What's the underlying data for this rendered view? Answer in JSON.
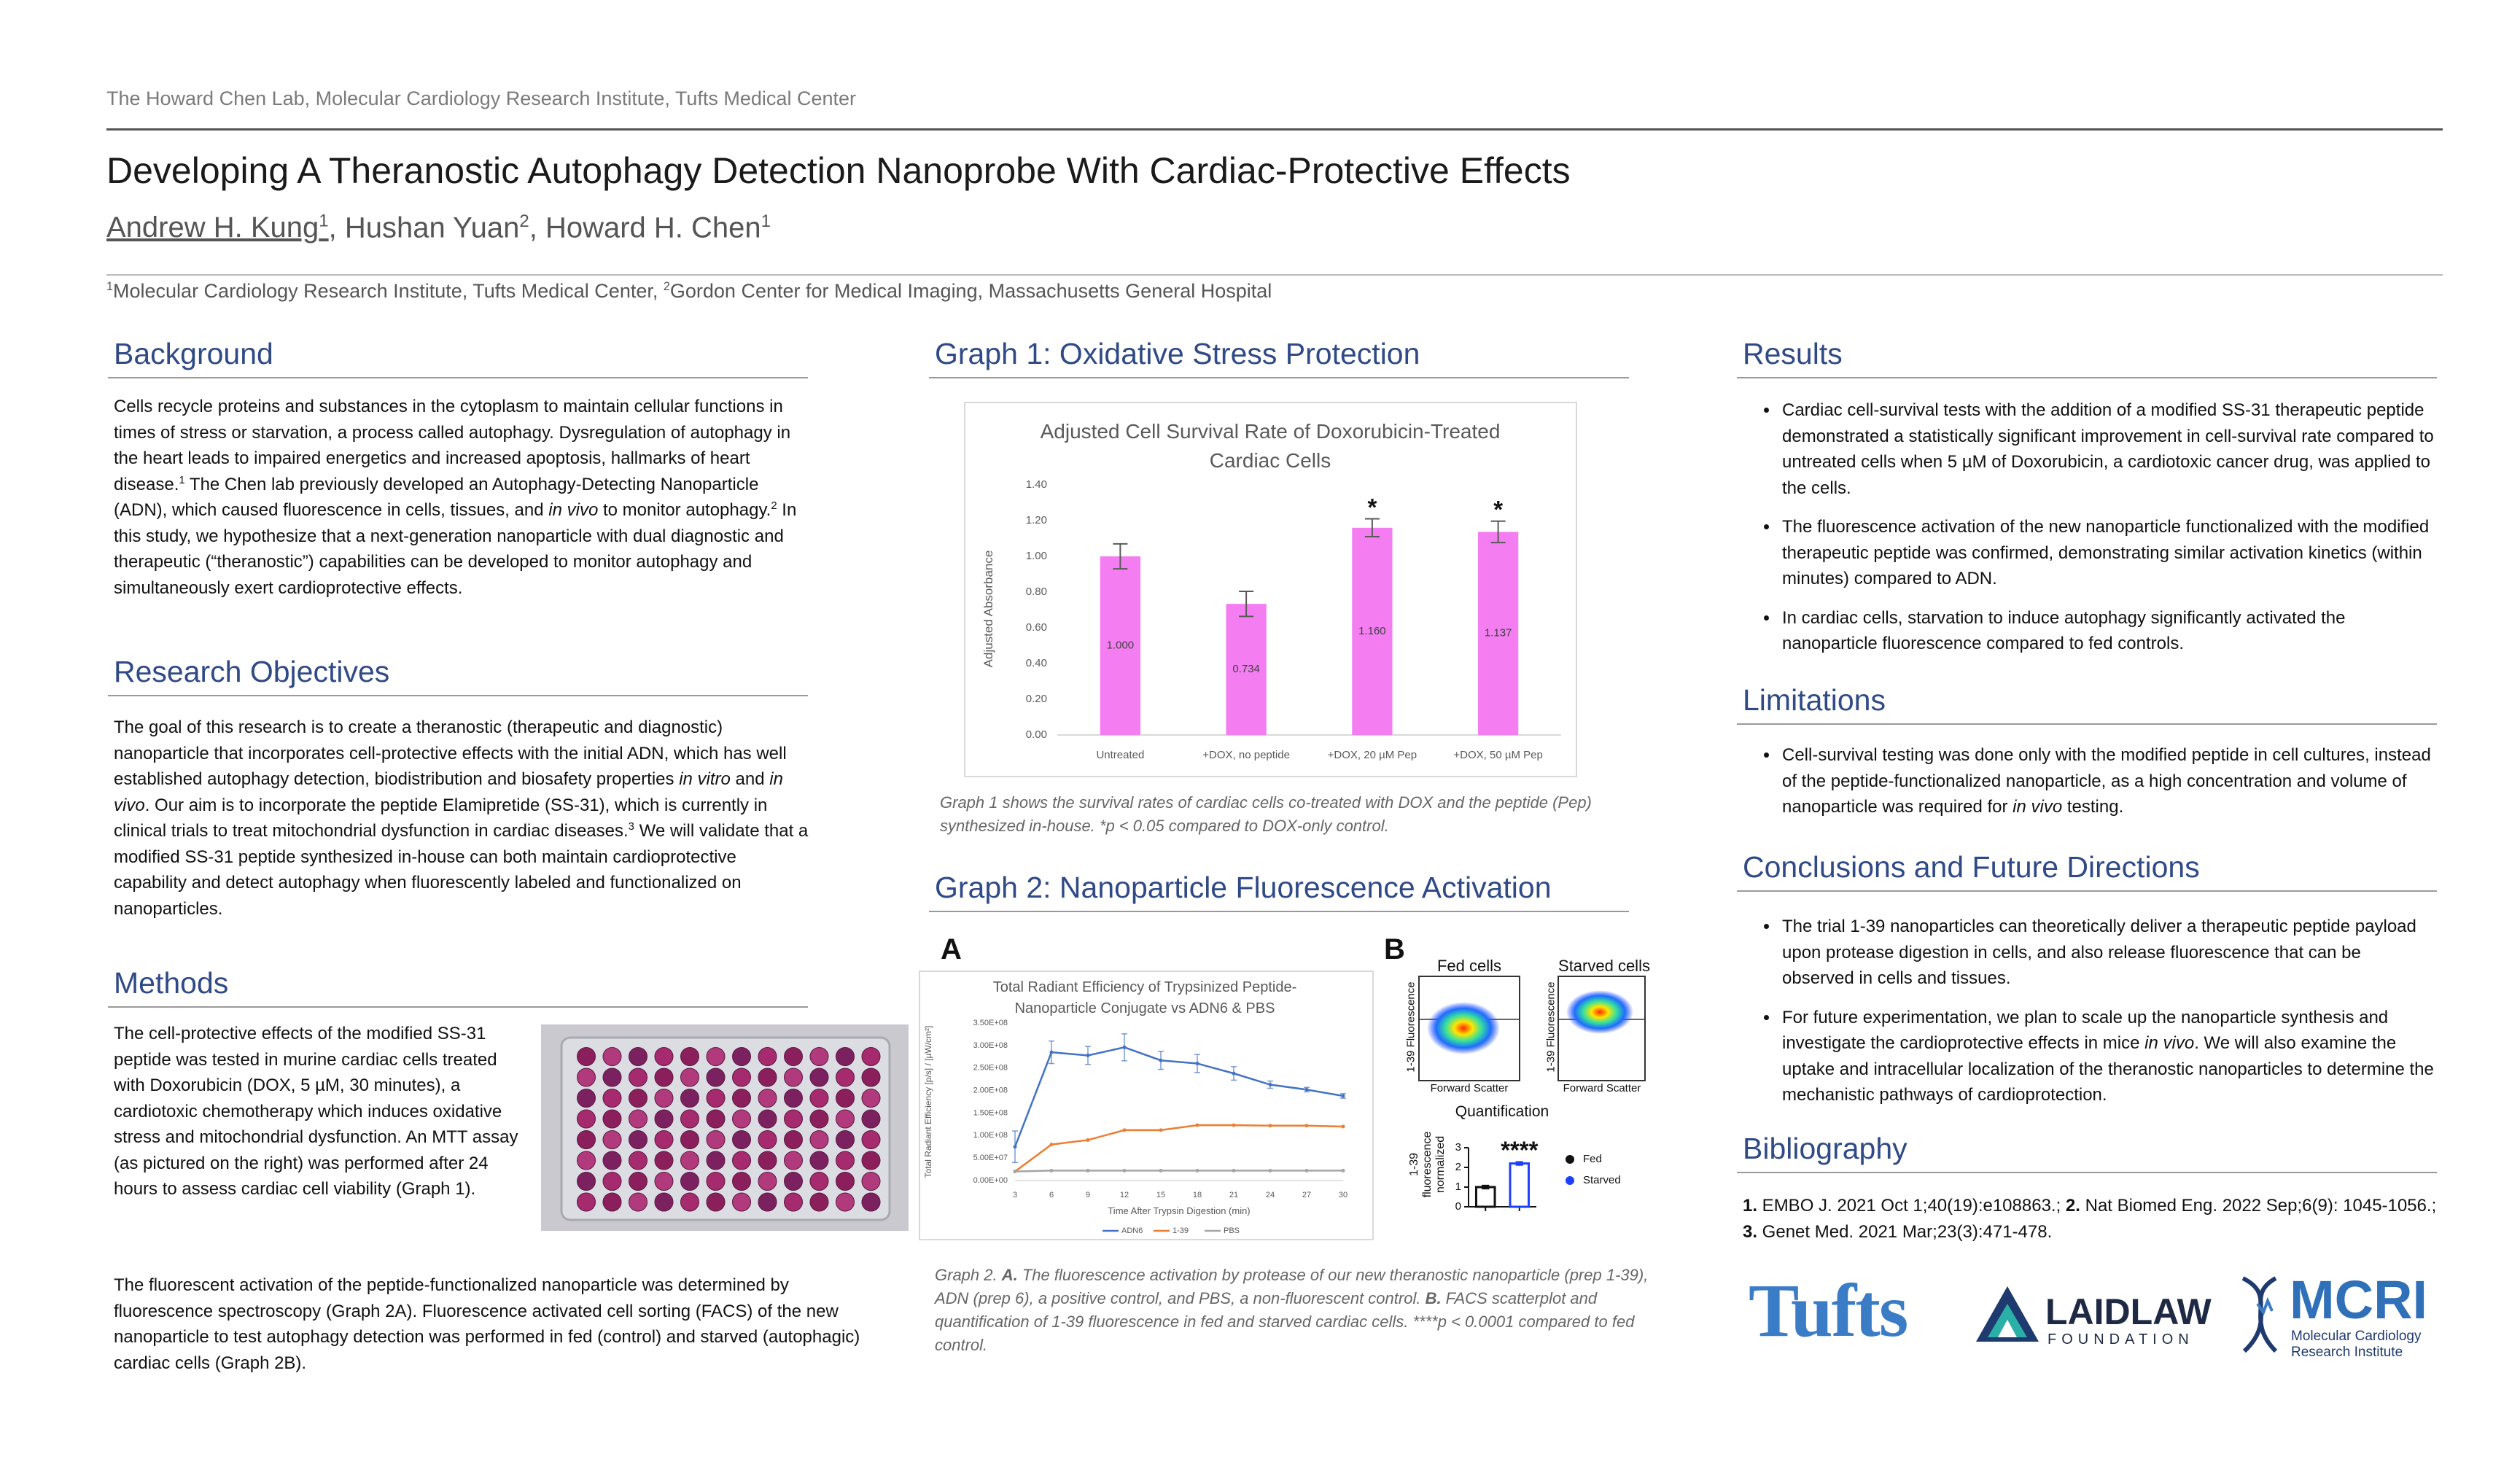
{
  "header": {
    "lab": "The Howard Chen Lab, Molecular Cardiology Research Institute, Tufts Medical Center",
    "title": "Developing A Theranostic Autophagy Detection Nanoprobe With Cardiac-Protective Effects",
    "authors": [
      {
        "name": "Andrew H. Kung",
        "affiliation": "1"
      },
      {
        "name": "Hushan Yuan",
        "affiliation": "2"
      },
      {
        "name": "Howard H. Chen",
        "affiliation": "1"
      }
    ],
    "author_separator": ", ",
    "affiliations": [
      {
        "number": "1",
        "name": "Molecular Cardiology Research Institute, Tufts Medical Center"
      },
      {
        "number": "2",
        "name": "Gordon Center for Medical Imaging, Massachusetts General Hospital"
      }
    ],
    "affiliation_separator": ", "
  },
  "background": {
    "heading": "Background",
    "text": [
      "Cells recycle proteins and substances in the cytoplasm to maintain cellular functions in times of stress or starvation, a process called autophagy. Dysregulation of autophagy in the heart leads to impaired energetics and increased apoptosis, hallmarks of heart disease.",
      "1",
      " The Chen lab previously developed an Autophagy-Detecting Nanoparticle (ADN), which caused fluorescence in cells, tissues, and ",
      "in vivo",
      " to monitor autophagy.",
      "2",
      " In this study, we hypothesize that a next-generation nanoparticle with dual diagnostic and therapeutic (“theranostic”) capabilities can be developed to monitor autophagy and simultaneously exert cardioprotective effects."
    ]
  },
  "objectives": {
    "heading": "Research Objectives",
    "text": [
      "The goal of this research is to create a theranostic (therapeutic and diagnostic) nanoparticle that incorporates cell-protective effects with the initial ADN, which has well established autophagy detection, biodistribution and biosafety properties ",
      "in vitro",
      " and ",
      "in vivo",
      ". Our aim is to incorporate the peptide Elamipretide (SS-31), which is currently in clinical trials to treat mitochondrial dysfunction in cardiac diseases.",
      "3",
      " We will validate that a modified SS-31 peptide synthesized in-house can both maintain cardioprotective capability and detect autophagy when fluorescently labeled and functionalized on nanoparticles."
    ]
  },
  "methods": {
    "heading": "Methods",
    "paragraphs": [
      "The cell-protective effects of the modified SS-31 peptide was tested in murine cardiac cells treated with Doxorubicin (DOX, 5 µM, 30 minutes), a cardiotoxic chemotherapy which induces oxidative stress and mitochondrial dysfunction. An MTT assay (as pictured on the right) was performed after 24 hours to assess cardiac cell viability (Graph 1).",
      "The fluorescent activation of the peptide-functionalized nanoparticle was determined by fluorescence spectroscopy (Graph 2A). Fluorescence activated cell sorting (FACS) of the new nanoparticle to test autophagy detection was performed in fed (control) and starved (autophagic) cardiac cells (Graph 2B)."
    ]
  },
  "graph1": {
    "heading": "Graph 1: Oxidative Stress Protection",
    "caption": "Graph 1 shows the survival rates of cardiac cells co-treated with DOX and the peptide (Pep) synthesized in-house. *p < 0.05 compared to DOX-only control."
  },
  "graph2": {
    "heading": "Graph 2: Nanoparticle Fluorescence Activation",
    "panel_a": "A",
    "panel_b": "B",
    "caption": [
      "Graph 2. ",
      "A.",
      " The fluorescence activation by protease of our new theranostic nanoparticle (prep 1-39), ADN (prep 6), a positive control, and PBS, a non-fluorescent control. ",
      "B.",
      " FACS scatterplot and quantification of 1-39 fluorescence in fed and starved cardiac cells. ****p < 0.0001 compared to fed control."
    ]
  },
  "facs": {
    "panels": [
      {
        "title": "Fed cells",
        "y_label": "1-39 Fluorescence",
        "x_label": "Forward Scatter"
      },
      {
        "title": "Starved cells",
        "y_label": "1-39 Fluorescence",
        "x_label": "Forward Scatter"
      }
    ]
  },
  "chart_data": [
    {
      "type": "bar",
      "title": "Adjusted Cell Survival Rate of Doxorubicin-Treated Cardiac Cells",
      "y_label": "Adjusted Absorbance",
      "categories": [
        "Untreated",
        "+DOX, no peptide",
        "+DOX, 20 µM Pep",
        "+DOX, 50 µM Pep"
      ],
      "values": [
        1.0,
        0.734,
        1.16,
        1.137
      ],
      "value_labels": [
        "1.000",
        "0.734",
        "1.160",
        "1.137"
      ],
      "errors": [
        0.07,
        0.07,
        0.05,
        0.06
      ],
      "significance": [
        null,
        null,
        "*",
        "*"
      ],
      "color": "#f47ef1",
      "ylim": [
        0,
        1.4
      ],
      "yticks": [
        {
          "value": 0,
          "label": "0.00"
        },
        {
          "value": 0.2,
          "label": "0.20"
        },
        {
          "value": 0.4,
          "label": "0.40"
        },
        {
          "value": 0.6,
          "label": "0.60"
        },
        {
          "value": 0.8,
          "label": "0.80"
        },
        {
          "value": 1.0,
          "label": "1.00"
        },
        {
          "value": 1.2,
          "label": "1.20"
        },
        {
          "value": 1.4,
          "label": "1.40"
        }
      ],
      "grid": false
    },
    {
      "type": "line",
      "title": "Total Radiant Efficiency of Trypsinized Peptide-Nanoparticle Conjugate vs ADN6 & PBS",
      "x_label": "Time After Trypsin Digestion (min)",
      "y_label": "Total Radiant Efficiency [p/s] / [µW/cm²]",
      "x": [
        3,
        6,
        9,
        12,
        15,
        18,
        21,
        24,
        27,
        30
      ],
      "series": [
        {
          "name": "ADN6",
          "color": "#4472c4",
          "values": [
            75000000,
            285000000,
            278000000,
            296000000,
            267000000,
            260000000,
            238000000,
            213000000,
            202000000,
            188000000
          ],
          "errors": [
            35000000,
            25000000,
            20000000,
            30000000,
            20000000,
            20000000,
            15000000,
            8000000,
            5000000,
            5000000
          ]
        },
        {
          "name": "1-39",
          "color": "#ed7d31",
          "values": [
            20000000,
            80000000,
            90000000,
            112000000,
            112000000,
            123000000,
            123000000,
            122000000,
            122000000,
            120000000
          ]
        },
        {
          "name": "PBS",
          "color": "#a5a5a5",
          "values": [
            20000000,
            22000000,
            22000000,
            22000000,
            22000000,
            22000000,
            22000000,
            22000000,
            22000000,
            22000000
          ]
        }
      ],
      "xlim": [
        3,
        30
      ],
      "xticks": [
        3,
        6,
        9,
        12,
        15,
        18,
        21,
        24,
        27,
        30
      ],
      "ylim": [
        0,
        350000000
      ],
      "yticks": [
        {
          "value": 0,
          "label": "0.00E+00"
        },
        {
          "value": 50000000,
          "label": "5.00E+07"
        },
        {
          "value": 100000000,
          "label": "1.00E+08"
        },
        {
          "value": 150000000,
          "label": "1.50E+08"
        },
        {
          "value": 200000000,
          "label": "2.00E+08"
        },
        {
          "value": 250000000,
          "label": "2.50E+08"
        },
        {
          "value": 300000000,
          "label": "3.00E+08"
        },
        {
          "value": 350000000,
          "label": "3.50E+08"
        }
      ],
      "legend": "bottom",
      "grid": false
    },
    {
      "type": "bar",
      "title": "Quantification",
      "y_label": "1-39 fluorescence normalized",
      "categories": [
        null,
        null
      ],
      "series": [
        {
          "name": "Fed",
          "color": "#111111",
          "values": [
            1.0,
            null
          ],
          "errors": [
            0.08,
            null
          ]
        },
        {
          "name": "Starved",
          "color": "#1f3fff",
          "values": [
            null,
            2.2
          ],
          "errors": [
            null,
            0.08
          ]
        }
      ],
      "significance": [
        null,
        "****"
      ],
      "bar_style": "outline",
      "axis_lines": true,
      "legend": "right",
      "ylim": [
        0,
        3
      ],
      "yticks": [
        0,
        1,
        2,
        3
      ],
      "grid": false
    }
  ],
  "results": {
    "heading": "Results",
    "bullets": [
      [
        "Cardiac cell-survival tests with the addition of a modified SS-31 therapeutic peptide demonstrated a statistically significant improvement in cell-survival rate compared to untreated cells when 5 µM of Doxorubicin, a cardiotoxic cancer drug, was applied to the cells."
      ],
      [
        "The fluorescence activation of the new nanoparticle functionalized with the modified therapeutic peptide was confirmed, demonstrating similar activation kinetics (within minutes) compared to ADN."
      ],
      [
        "In cardiac cells, starvation to induce autophagy significantly activated the nanoparticle fluorescence compared to fed controls."
      ]
    ]
  },
  "limitations": {
    "heading": "Limitations",
    "bullets": [
      [
        "Cell-survival testing was done only with the modified peptide in cell cultures, instead of the peptide-functionalized nanoparticle, as a high concentration and volume of nanoparticle was required for ",
        "in vivo",
        " testing."
      ]
    ]
  },
  "conclusions": {
    "heading": "Conclusions and Future Directions",
    "bullets": [
      [
        "The trial 1-39 nanoparticles can theoretically deliver a therapeutic peptide payload upon protease digestion in cells, and also release fluorescence that can be observed in cells and tissues."
      ],
      [
        "For future experimentation, we plan to scale up the nanoparticle synthesis and investigate the cardioprotective effects in mice ",
        "in vivo",
        ". We will also examine the uptake and intracellular localization of the theranostic nanoparticles to determine the mechanistic pathways of cardioprotection."
      ]
    ]
  },
  "bibliography": {
    "heading": "Bibliography",
    "text": [
      "1.",
      " EMBO J. 2021 Oct 1;40(19):e108863.; ",
      "2.",
      " Nat Biomed Eng. 2022 Sep;6(9): 1045-1056.; ",
      "3.",
      " Genet Med. 2021 Mar;23(3):471-478."
    ]
  },
  "logos": {
    "tufts": "Tufts",
    "laidlaw": [
      "LAIDLAW",
      "FOUNDATION"
    ],
    "mcri": [
      "MCRI",
      "Molecular Cardiology",
      "Research Institute"
    ]
  }
}
